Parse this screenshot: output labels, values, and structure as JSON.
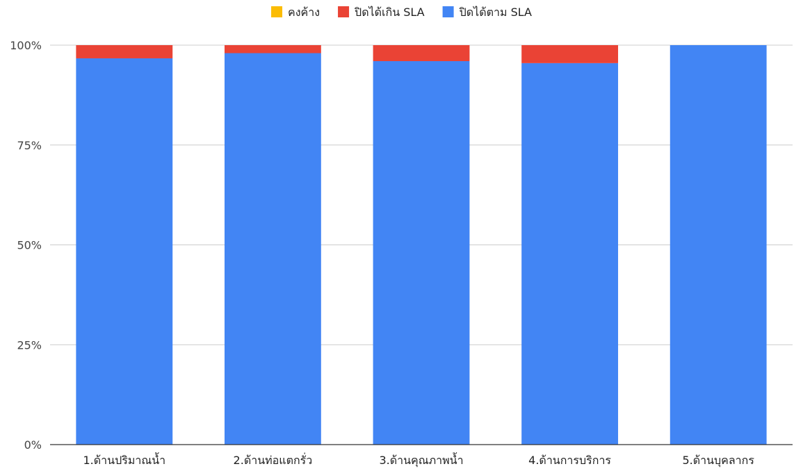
{
  "chart_data": {
    "type": "bar",
    "stacked": true,
    "percent": true,
    "categories": [
      "1.ด้านปริมาณน้ำ",
      "2.ด้านท่อแตกรั่ว",
      "3.ด้านคุณภาพน้ำ",
      "4.ด้านการบริการ",
      "5.ด้านบุคลากร"
    ],
    "series": [
      {
        "name": "ปิดได้ตาม SLA",
        "color": "#4285F4",
        "values": [
          96.7,
          98.0,
          96.0,
          95.5,
          100.0
        ]
      },
      {
        "name": "ปิดได้เกิน SLA",
        "color": "#EA4335",
        "values": [
          3.3,
          2.0,
          4.0,
          4.5,
          0.0
        ]
      },
      {
        "name": "คงค้าง",
        "color": "#FBBC04",
        "values": [
          0,
          0,
          0,
          0,
          0
        ]
      }
    ],
    "legend_order": [
      "คงค้าง",
      "ปิดได้เกิน SLA",
      "ปิดได้ตาม SLA"
    ],
    "legend_position": "top",
    "ylim": [
      0,
      100
    ],
    "yticks": [
      "0%",
      "25%",
      "50%",
      "75%",
      "100%"
    ],
    "grid": true,
    "title": "",
    "xlabel": "",
    "ylabel": ""
  }
}
